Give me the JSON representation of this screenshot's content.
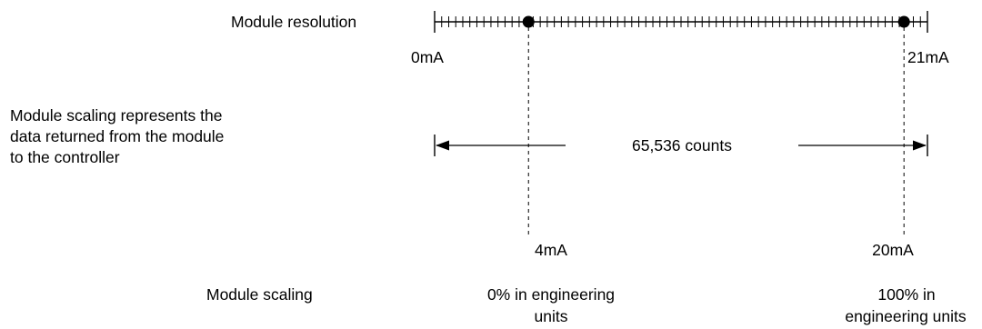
{
  "labels": {
    "module_resolution": "Module resolution",
    "left_end": "0mA",
    "right_end": "21mA",
    "scaling_note_lines": [
      "Module scaling represents the",
      "data returned from the module",
      "to the controller"
    ],
    "counts": "65,536 counts",
    "low_marker": "4mA",
    "high_marker": "20mA",
    "module_scaling": "Module scaling",
    "low_scaling_lines": [
      "0% in engineering",
      "units"
    ],
    "high_scaling_lines": [
      "100% in",
      "engineering units"
    ]
  },
  "scale": {
    "min_mA": 0,
    "max_mA": 21,
    "minor_tick_step_mA": 0.3,
    "markers_mA": [
      4,
      20
    ]
  },
  "colors": {
    "ink": "#000000",
    "background": "#ffffff"
  }
}
